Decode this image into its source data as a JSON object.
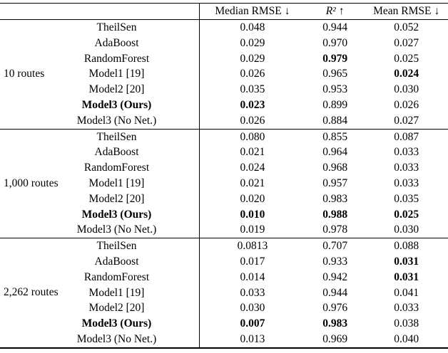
{
  "columns": [
    {
      "label": "Median RMSE",
      "arrow": "↓",
      "italic": false
    },
    {
      "label": "R²",
      "arrow": "↑",
      "italic": true
    },
    {
      "label": "Mean RMSE",
      "arrow": "↓",
      "italic": false
    }
  ],
  "groups": [
    {
      "label": "10 routes",
      "rows": [
        {
          "method": "TheilSen",
          "bold_method": false,
          "values": [
            "0.048",
            "0.944",
            "0.052"
          ],
          "bold": [
            false,
            false,
            false
          ]
        },
        {
          "method": "AdaBoost",
          "bold_method": false,
          "values": [
            "0.029",
            "0.970",
            "0.027"
          ],
          "bold": [
            false,
            false,
            false
          ]
        },
        {
          "method": "RandomForest",
          "bold_method": false,
          "values": [
            "0.029",
            "0.979",
            "0.025"
          ],
          "bold": [
            false,
            true,
            false
          ]
        },
        {
          "method": "Model1 [19]",
          "bold_method": false,
          "values": [
            "0.026",
            "0.965",
            "0.024"
          ],
          "bold": [
            false,
            false,
            true
          ]
        },
        {
          "method": "Model2 [20]",
          "bold_method": false,
          "values": [
            "0.035",
            "0.953",
            "0.030"
          ],
          "bold": [
            false,
            false,
            false
          ]
        },
        {
          "method": "Model3 (Ours)",
          "bold_method": true,
          "values": [
            "0.023",
            "0.899",
            "0.026"
          ],
          "bold": [
            true,
            false,
            false
          ]
        },
        {
          "method": "Model3 (No Net.)",
          "bold_method": false,
          "values": [
            "0.026",
            "0.884",
            "0.027"
          ],
          "bold": [
            false,
            false,
            false
          ]
        }
      ]
    },
    {
      "label": "1,000 routes",
      "rows": [
        {
          "method": "TheilSen",
          "bold_method": false,
          "values": [
            "0.080",
            "0.855",
            "0.087"
          ],
          "bold": [
            false,
            false,
            false
          ]
        },
        {
          "method": "AdaBoost",
          "bold_method": false,
          "values": [
            "0.021",
            "0.964",
            "0.033"
          ],
          "bold": [
            false,
            false,
            false
          ]
        },
        {
          "method": "RandomForest",
          "bold_method": false,
          "values": [
            "0.024",
            "0.968",
            "0.033"
          ],
          "bold": [
            false,
            false,
            false
          ]
        },
        {
          "method": "Model1 [19]",
          "bold_method": false,
          "values": [
            "0.021",
            "0.957",
            "0.033"
          ],
          "bold": [
            false,
            false,
            false
          ]
        },
        {
          "method": "Model2 [20]",
          "bold_method": false,
          "values": [
            "0.020",
            "0.983",
            "0.035"
          ],
          "bold": [
            false,
            false,
            false
          ]
        },
        {
          "method": "Model3 (Ours)",
          "bold_method": true,
          "values": [
            "0.010",
            "0.988",
            "0.025"
          ],
          "bold": [
            true,
            true,
            true
          ]
        },
        {
          "method": "Model3 (No Net.)",
          "bold_method": false,
          "values": [
            "0.019",
            "0.978",
            "0.030"
          ],
          "bold": [
            false,
            false,
            false
          ]
        }
      ]
    },
    {
      "label": "2,262 routes",
      "rows": [
        {
          "method": "TheilSen",
          "bold_method": false,
          "values": [
            "0.0813",
            "0.707",
            "0.088"
          ],
          "bold": [
            false,
            false,
            false
          ]
        },
        {
          "method": "AdaBoost",
          "bold_method": false,
          "values": [
            "0.017",
            "0.933",
            "0.031"
          ],
          "bold": [
            false,
            false,
            true
          ]
        },
        {
          "method": "RandomForest",
          "bold_method": false,
          "values": [
            "0.014",
            "0.942",
            "0.031"
          ],
          "bold": [
            false,
            false,
            true
          ]
        },
        {
          "method": "Model1 [19]",
          "bold_method": false,
          "values": [
            "0.033",
            "0.944",
            "0.041"
          ],
          "bold": [
            false,
            false,
            false
          ]
        },
        {
          "method": "Model2 [20]",
          "bold_method": false,
          "values": [
            "0.030",
            "0.976",
            "0.033"
          ],
          "bold": [
            false,
            false,
            false
          ]
        },
        {
          "method": "Model3 (Ours)",
          "bold_method": true,
          "values": [
            "0.007",
            "0.983",
            "0.038"
          ],
          "bold": [
            true,
            true,
            false
          ]
        },
        {
          "method": "Model3 (No Net.)",
          "bold_method": false,
          "values": [
            "0.013",
            "0.969",
            "0.040"
          ],
          "bold": [
            false,
            false,
            false
          ]
        }
      ]
    }
  ]
}
